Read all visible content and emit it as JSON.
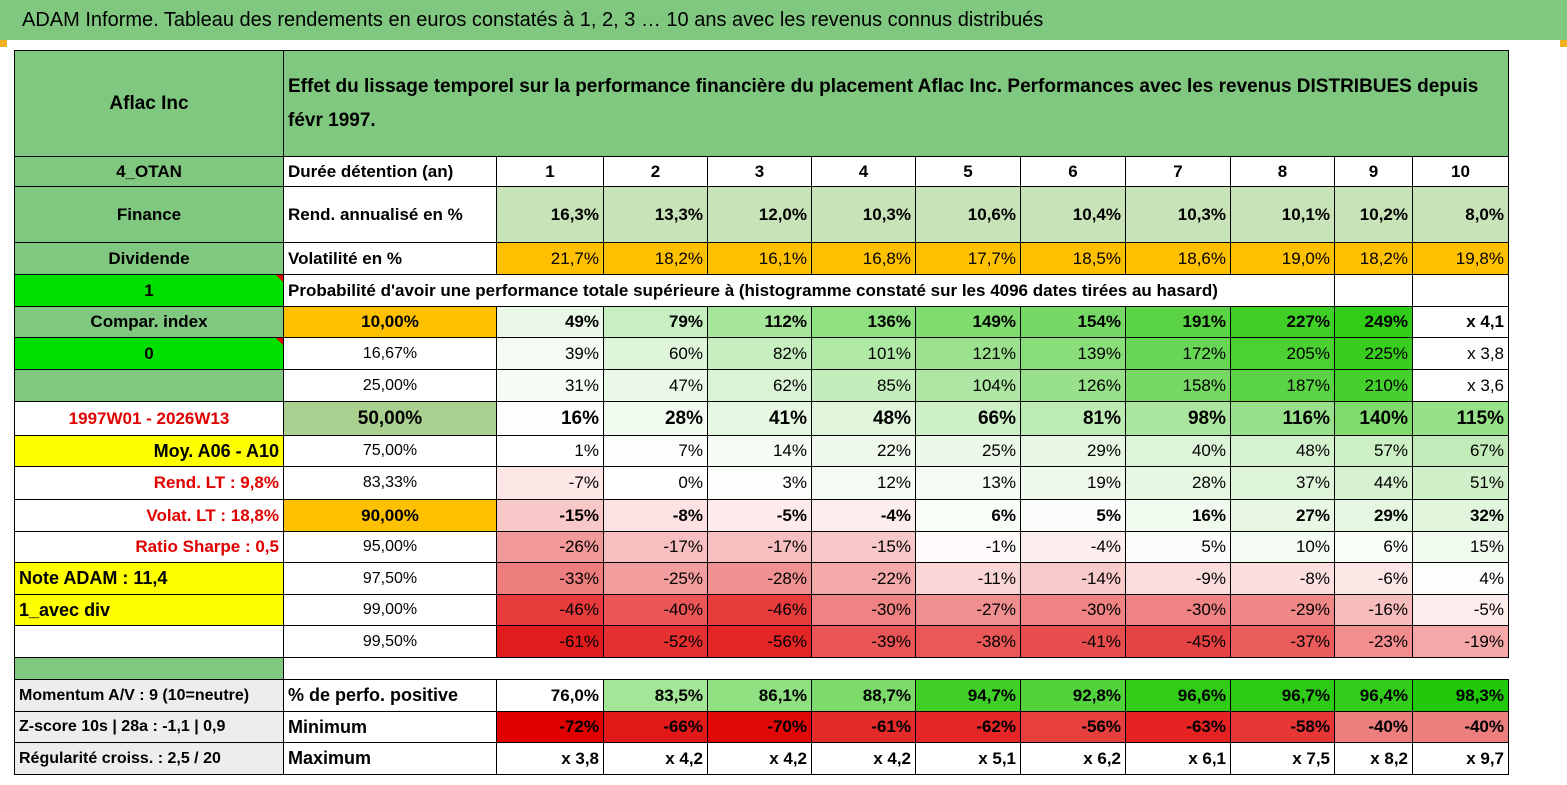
{
  "title": "ADAM Informe. Tableau des rendements en euros constatés à 1, 2, 3 … 10 ans avec les revenus connus distribués",
  "header": {
    "company": "Aflac Inc",
    "description": "Effet du lissage temporel sur la performance financière du placement Aflac Inc. Performances avec les revenus DISTRIBUES depuis févr 1997."
  },
  "left": {
    "code": "4_OTAN",
    "sector": "Finance",
    "type": "Dividende",
    "flag1": "1",
    "compar": "Compar. index",
    "flag0": "0",
    "period": "1997W01 - 2026W13",
    "moy": "Moy. A06 - A10",
    "rend_lt": "Rend. LT :   9,8%",
    "volat_lt": "Volat. LT :   18,8%",
    "sharpe": "Ratio Sharpe :    0,5",
    "note": "Note ADAM : 11,4",
    "avec_div": "1_avec div",
    "momentum": "Momentum A/V : 9 (10=neutre)",
    "zscore": "Z-score 10s | 28a : -1,1 | 0,9",
    "regularite": "Régularité croiss. : 2,5 / 20"
  },
  "labels": {
    "duree": "Durée détention (an)",
    "rend": "Rend. annualisé en %",
    "volat": "Volatilité en %",
    "proba": "Probabilité d'avoir une performance totale supérieure à (histogramme constaté sur les 4096 dates tirées au hasard)",
    "perf_pos": "% de perfo. positive",
    "minimum": "Minimum",
    "maximum": "Maximum"
  },
  "years": [
    "1",
    "2",
    "3",
    "4",
    "5",
    "6",
    "7",
    "8",
    "9",
    "10"
  ],
  "rend": [
    "16,3%",
    "13,3%",
    "12,0%",
    "10,3%",
    "10,6%",
    "10,4%",
    "10,3%",
    "10,1%",
    "10,2%",
    "8,0%"
  ],
  "volat": [
    "21,7%",
    "18,2%",
    "16,1%",
    "16,8%",
    "17,7%",
    "18,5%",
    "18,6%",
    "19,0%",
    "18,2%",
    "19,8%"
  ],
  "proba_rows": [
    {
      "pct": "10,00%",
      "values": [
        "49%",
        "79%",
        "112%",
        "136%",
        "149%",
        "154%",
        "191%",
        "227%",
        "249%",
        "x 4,1"
      ]
    },
    {
      "pct": "16,67%",
      "values": [
        "39%",
        "60%",
        "82%",
        "101%",
        "121%",
        "139%",
        "172%",
        "205%",
        "225%",
        "x 3,8"
      ]
    },
    {
      "pct": "25,00%",
      "values": [
        "31%",
        "47%",
        "62%",
        "85%",
        "104%",
        "126%",
        "158%",
        "187%",
        "210%",
        "x 3,6"
      ]
    },
    {
      "pct": "50,00%",
      "values": [
        "16%",
        "28%",
        "41%",
        "48%",
        "66%",
        "81%",
        "98%",
        "116%",
        "140%",
        "115%"
      ]
    },
    {
      "pct": "75,00%",
      "values": [
        "1%",
        "7%",
        "14%",
        "22%",
        "25%",
        "29%",
        "40%",
        "48%",
        "57%",
        "67%"
      ]
    },
    {
      "pct": "83,33%",
      "values": [
        "-7%",
        "0%",
        "3%",
        "12%",
        "13%",
        "19%",
        "28%",
        "37%",
        "44%",
        "51%"
      ]
    },
    {
      "pct": "90,00%",
      "values": [
        "-15%",
        "-8%",
        "-5%",
        "-4%",
        "6%",
        "5%",
        "16%",
        "27%",
        "29%",
        "32%"
      ]
    },
    {
      "pct": "95,00%",
      "values": [
        "-26%",
        "-17%",
        "-17%",
        "-15%",
        "-1%",
        "-4%",
        "5%",
        "10%",
        "6%",
        "15%"
      ]
    },
    {
      "pct": "97,50%",
      "values": [
        "-33%",
        "-25%",
        "-28%",
        "-22%",
        "-11%",
        "-14%",
        "-9%",
        "-8%",
        "-6%",
        "4%"
      ]
    },
    {
      "pct": "99,00%",
      "values": [
        "-46%",
        "-40%",
        "-46%",
        "-30%",
        "-27%",
        "-30%",
        "-30%",
        "-29%",
        "-16%",
        "-5%"
      ]
    },
    {
      "pct": "99,50%",
      "values": [
        "-61%",
        "-52%",
        "-56%",
        "-39%",
        "-38%",
        "-41%",
        "-45%",
        "-37%",
        "-23%",
        "-19%"
      ]
    }
  ],
  "perf_pos": [
    "76,0%",
    "83,5%",
    "86,1%",
    "88,7%",
    "94,7%",
    "92,8%",
    "96,6%",
    "96,7%",
    "96,4%",
    "98,3%"
  ],
  "minimum": [
    "-72%",
    "-66%",
    "-70%",
    "-61%",
    "-62%",
    "-56%",
    "-63%",
    "-58%",
    "-40%",
    "-40%"
  ],
  "maximum": [
    "x 3,8",
    "x 4,2",
    "x 4,2",
    "x 4,2",
    "x 5,1",
    "x 6,2",
    "x 6,1",
    "x 7,5",
    "x 8,2",
    "x 9,7"
  ],
  "colors": {
    "header_green": "#80c880",
    "light_green": "#c8e3b8",
    "bright_green": "#00e000",
    "orange": "#ffc000",
    "yellow": "#ffff00",
    "red_text": "#e00000"
  }
}
